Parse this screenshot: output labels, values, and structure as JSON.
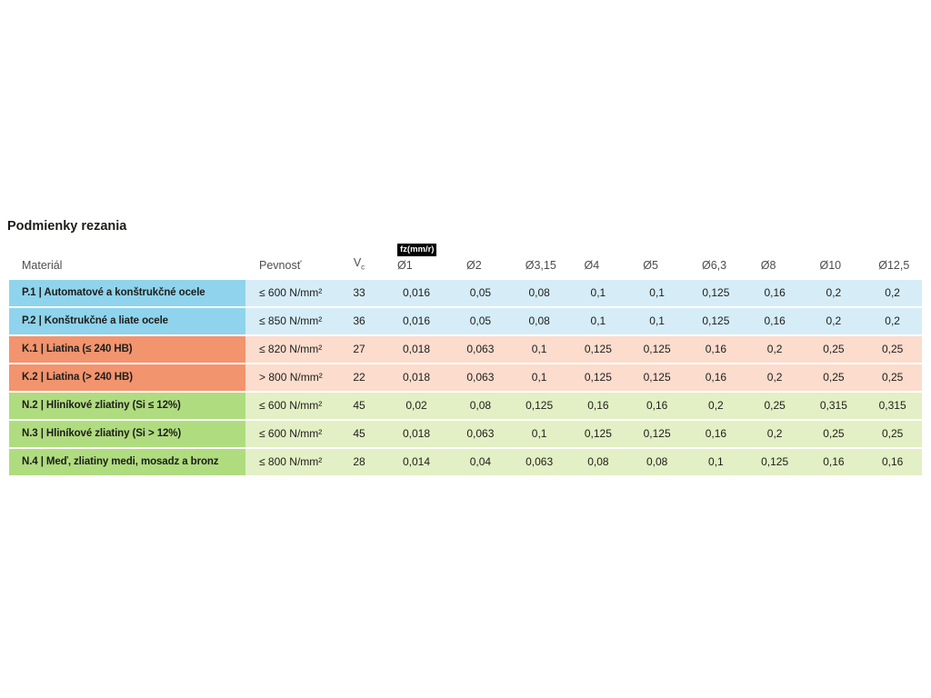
{
  "page": {
    "title": "Podmienky rezania"
  },
  "table": {
    "headers": {
      "material": "Materiál",
      "strength": "Pevnosť",
      "vc_main": "V",
      "vc_sub": "c",
      "fz_badge": "fz(mm/r)",
      "diameters": [
        "Ø1",
        "Ø2",
        "Ø3,15",
        "Ø4",
        "Ø5",
        "Ø6,3",
        "Ø8",
        "Ø10",
        "Ø12,5"
      ]
    },
    "rows": [
      {
        "group": "P",
        "material": "P.1 | Automatové a konštrukčné ocele",
        "strength": "≤ 600 N/mm²",
        "vc": "33",
        "values": [
          "0,016",
          "0,05",
          "0,08",
          "0,1",
          "0,1",
          "0,125",
          "0,16",
          "0,2",
          "0,2"
        ]
      },
      {
        "group": "P",
        "material": "P.2 | Konštrukčné a liate ocele",
        "strength": "≤ 850 N/mm²",
        "vc": "36",
        "values": [
          "0,016",
          "0,05",
          "0,08",
          "0,1",
          "0,1",
          "0,125",
          "0,16",
          "0,2",
          "0,2"
        ]
      },
      {
        "group": "K",
        "material": "K.1 | Liatina (≤ 240 HB)",
        "strength": "≤ 820 N/mm²",
        "vc": "27",
        "values": [
          "0,018",
          "0,063",
          "0,1",
          "0,125",
          "0,125",
          "0,16",
          "0,2",
          "0,25",
          "0,25"
        ]
      },
      {
        "group": "K",
        "material": "K.2 | Liatina (> 240 HB)",
        "strength": "> 800 N/mm²",
        "vc": "22",
        "values": [
          "0,018",
          "0,063",
          "0,1",
          "0,125",
          "0,125",
          "0,16",
          "0,2",
          "0,25",
          "0,25"
        ]
      },
      {
        "group": "N",
        "material": "N.2 | Hliníkové zliatiny (Si ≤ 12%)",
        "strength": "≤ 600 N/mm²",
        "vc": "45",
        "values": [
          "0,02",
          "0,08",
          "0,125",
          "0,16",
          "0,16",
          "0,2",
          "0,25",
          "0,315",
          "0,315"
        ]
      },
      {
        "group": "N",
        "material": "N.3 | Hliníkové zliatiny (Si > 12%)",
        "strength": "≤ 600 N/mm²",
        "vc": "45",
        "values": [
          "0,018",
          "0,063",
          "0,1",
          "0,125",
          "0,125",
          "0,16",
          "0,2",
          "0,25",
          "0,25"
        ]
      },
      {
        "group": "N",
        "material": "N.4 | Meď, zliatiny medi, mosadz a bronz",
        "strength": "≤ 800 N/mm²",
        "vc": "28",
        "values": [
          "0,014",
          "0,04",
          "0,063",
          "0,08",
          "0,08",
          "0,1",
          "0,125",
          "0,16",
          "0,16"
        ]
      }
    ]
  },
  "colors": {
    "P": {
      "dark": "#8fd4ec",
      "light": "#d6edf8"
    },
    "K": {
      "dark": "#f2946e",
      "light": "#fbdccd"
    },
    "N": {
      "dark": "#b0dc80",
      "light": "#e3efc4"
    },
    "badge_bg": "#000000",
    "badge_text": "#ffffff",
    "header_text": "#4d4d4d",
    "body_text": "#1d1d1b"
  },
  "chart_data": {
    "type": "table",
    "title": "Podmienky rezania",
    "columns": [
      "Materiál",
      "Pevnosť",
      "Vc",
      "fz(mm/r) Ø1",
      "Ø2",
      "Ø3,15",
      "Ø4",
      "Ø5",
      "Ø6,3",
      "Ø8",
      "Ø10",
      "Ø12,5"
    ],
    "rows": [
      [
        "P.1 | Automatové a konštrukčné ocele",
        "≤ 600 N/mm²",
        "33",
        "0,016",
        "0,05",
        "0,08",
        "0,1",
        "0,1",
        "0,125",
        "0,16",
        "0,2",
        "0,2"
      ],
      [
        "P.2 | Konštrukčné a liate ocele",
        "≤ 850 N/mm²",
        "36",
        "0,016",
        "0,05",
        "0,08",
        "0,1",
        "0,1",
        "0,125",
        "0,16",
        "0,2",
        "0,2"
      ],
      [
        "K.1 | Liatina (≤ 240 HB)",
        "≤ 820 N/mm²",
        "27",
        "0,018",
        "0,063",
        "0,1",
        "0,125",
        "0,125",
        "0,16",
        "0,2",
        "0,25",
        "0,25"
      ],
      [
        "K.2 | Liatina (> 240 HB)",
        "> 800 N/mm²",
        "22",
        "0,018",
        "0,063",
        "0,1",
        "0,125",
        "0,125",
        "0,16",
        "0,2",
        "0,25",
        "0,25"
      ],
      [
        "N.2 | Hliníkové zliatiny (Si ≤ 12%)",
        "≤ 600 N/mm²",
        "45",
        "0,02",
        "0,08",
        "0,125",
        "0,16",
        "0,16",
        "0,2",
        "0,25",
        "0,315",
        "0,315"
      ],
      [
        "N.3 | Hliníkové zliatiny (Si > 12%)",
        "≤ 600 N/mm²",
        "45",
        "0,018",
        "0,063",
        "0,1",
        "0,125",
        "0,125",
        "0,16",
        "0,2",
        "0,25",
        "0,25"
      ],
      [
        "N.4 | Meď, zliatiny medi, mosadz a bronz",
        "≤ 800 N/mm²",
        "28",
        "0,014",
        "0,04",
        "0,063",
        "0,08",
        "0,08",
        "0,1",
        "0,125",
        "0,16",
        "0,16"
      ]
    ]
  }
}
